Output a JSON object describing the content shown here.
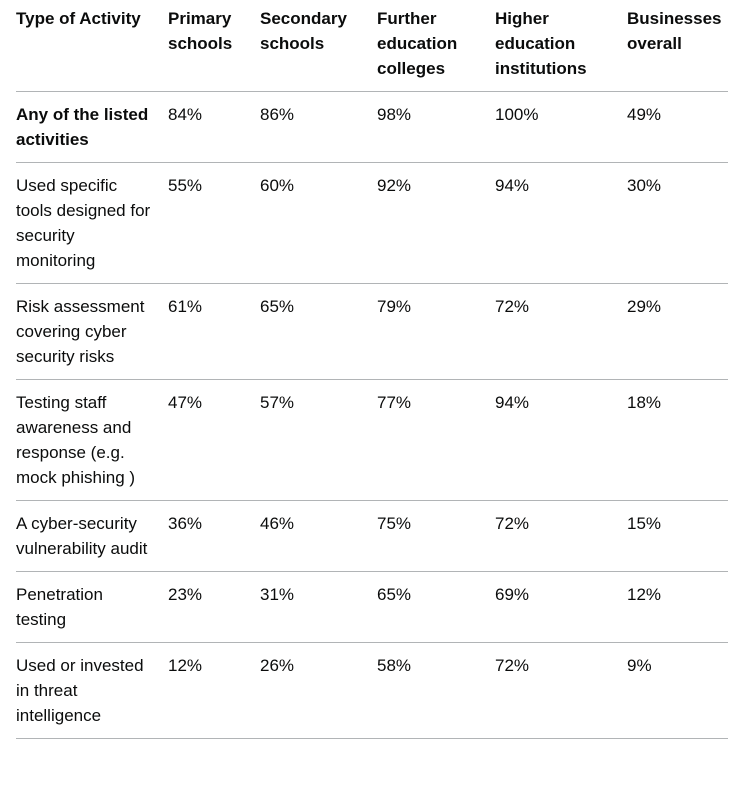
{
  "table": {
    "header": [
      "Type of Activity",
      "Primary schools",
      "Secondary schools",
      "Further education colleges",
      "Higher education institutions",
      "Businesses overall"
    ],
    "rows": [
      [
        "Any of the listed activities",
        "84%",
        "86%",
        "98%",
        "100%",
        "49%"
      ],
      [
        "Used specific tools designed for security monitoring",
        "55%",
        "60%",
        "92%",
        "94%",
        "30%"
      ],
      [
        "Risk assessment covering cyber security risks",
        "61%",
        "65%",
        "79%",
        "72%",
        "29%"
      ],
      [
        "Testing staff awareness and response (e.g. mock phishing )",
        "47%",
        "57%",
        "77%",
        "94%",
        "18%"
      ],
      [
        "A cyber-security vulnerability audit",
        "36%",
        "46%",
        "75%",
        "72%",
        "15%"
      ],
      [
        "Penetration testing",
        "23%",
        "31%",
        "65%",
        "69%",
        "12%"
      ],
      [
        "Used or invested in threat intelligence",
        "12%",
        "26%",
        "58%",
        "72%",
        "9%"
      ]
    ]
  }
}
